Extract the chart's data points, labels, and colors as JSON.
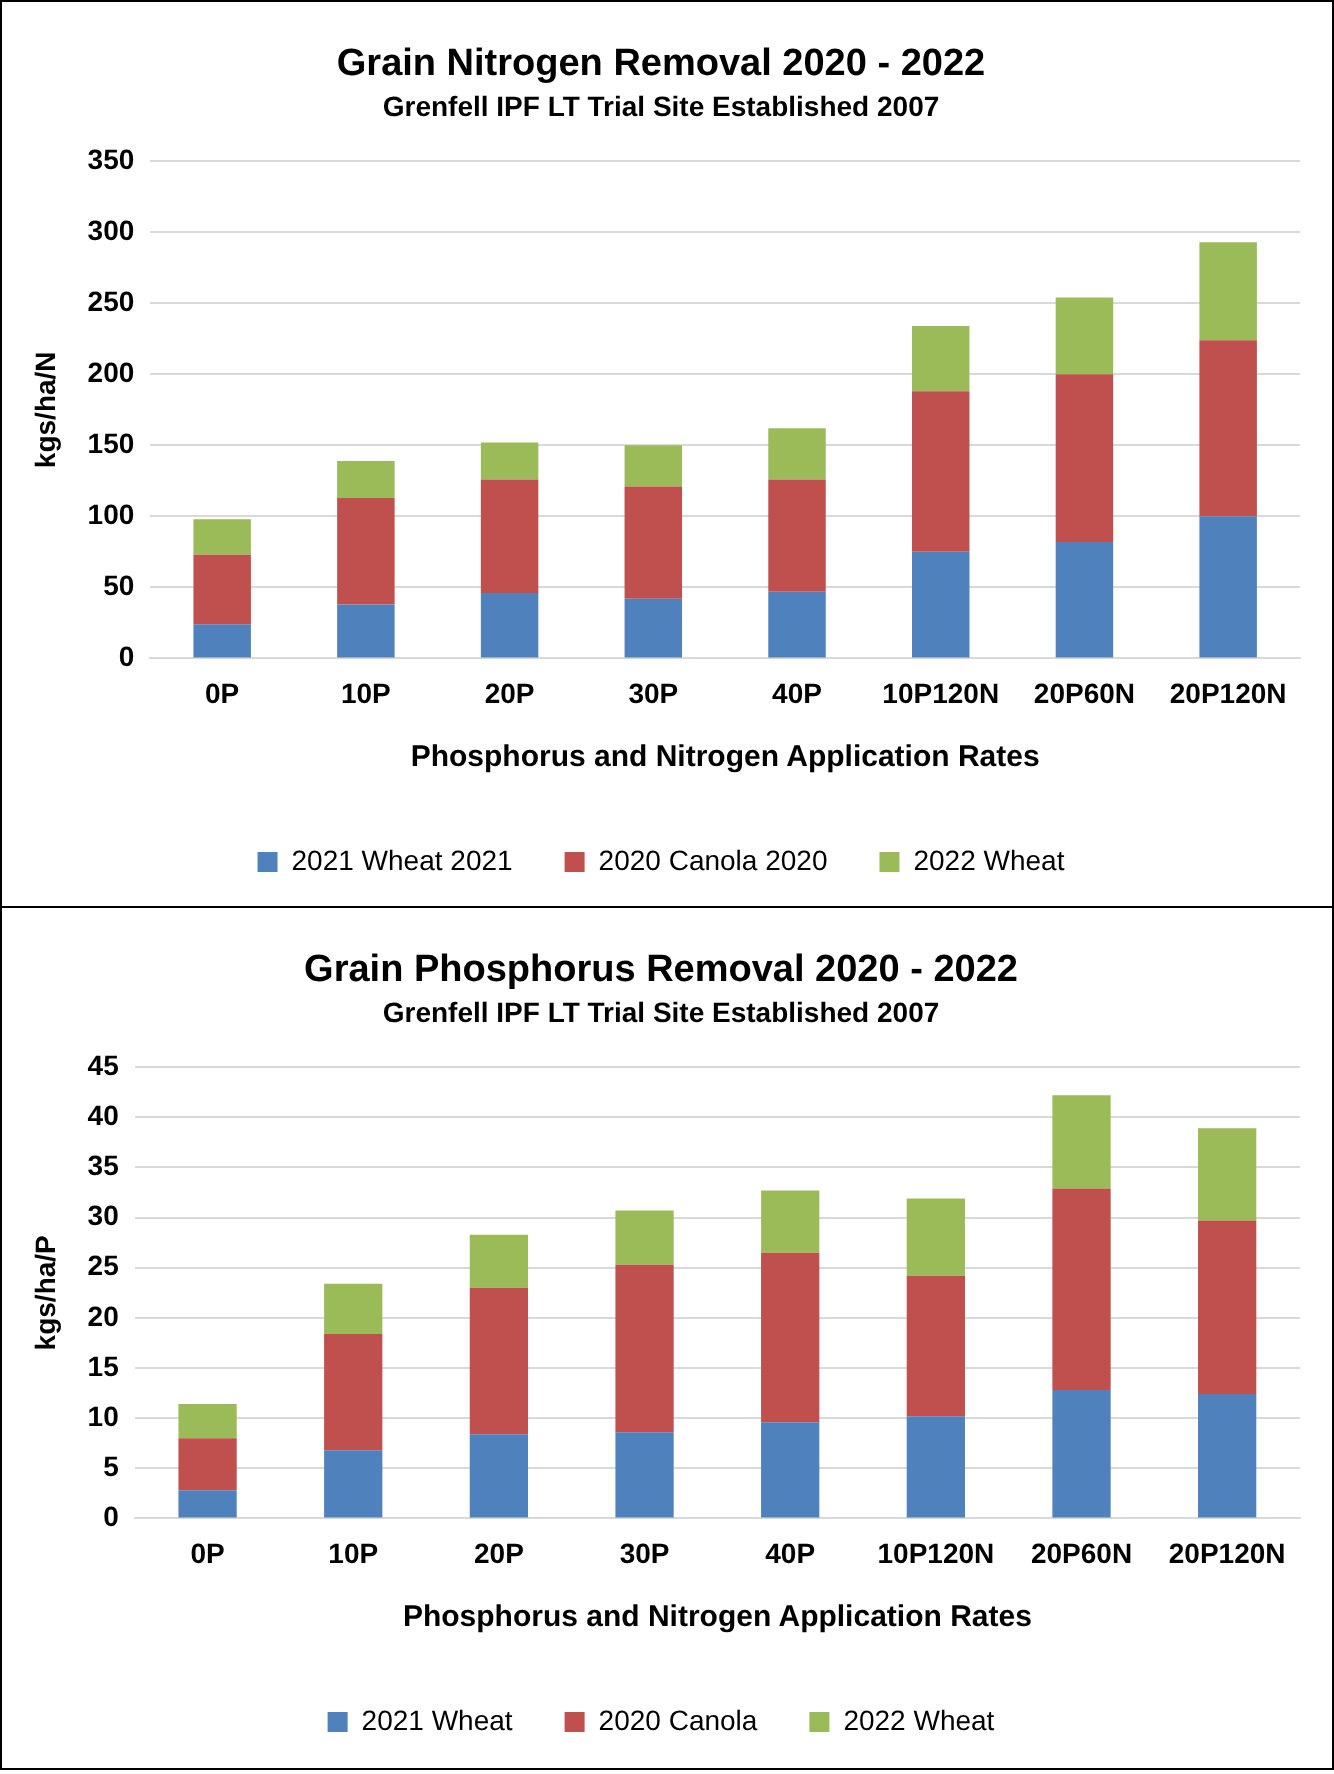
{
  "chart_data": [
    {
      "type": "bar",
      "title": "Grain Nitrogen Removal 2020 - 2022",
      "subtitle": "Grenfell IPF LT Trial Site Established 2007",
      "xlabel": "Phosphorus and Nitrogen Application Rates",
      "ylabel": "kgs/ha/N",
      "categories": [
        "0P",
        "10P",
        "20P",
        "30P",
        "40P",
        "10P120N",
        "20P60N",
        "20P120N"
      ],
      "stacked": true,
      "ylim": [
        0,
        350
      ],
      "yticks": [
        0,
        50,
        100,
        150,
        200,
        250,
        300,
        350
      ],
      "grid": "y",
      "legend": "bottom",
      "series": [
        {
          "name": "2021 Wheat 2021",
          "color": "#4f81bd",
          "values": [
            24,
            38,
            46,
            42,
            47,
            75,
            82,
            100
          ]
        },
        {
          "name": "2020 Canola 2020",
          "color": "#c0504d",
          "values": [
            49,
            75,
            80,
            79,
            79,
            113,
            118,
            124
          ]
        },
        {
          "name": "2022 Wheat",
          "color": "#9bbb59",
          "values": [
            25,
            26,
            26,
            29,
            36,
            46,
            54,
            69
          ]
        }
      ]
    },
    {
      "type": "bar",
      "title": "Grain Phosphorus Removal 2020 - 2022",
      "subtitle": "Grenfell IPF LT Trial Site Established 2007",
      "xlabel": "Phosphorus and Nitrogen Application Rates",
      "ylabel": "kgs/ha/P",
      "categories": [
        "0P",
        "10P",
        "20P",
        "30P",
        "40P",
        "10P120N",
        "20P60N",
        "20P120N"
      ],
      "stacked": true,
      "ylim": [
        0,
        45
      ],
      "yticks": [
        0,
        5,
        10,
        15,
        20,
        25,
        30,
        35,
        40,
        45
      ],
      "grid": "y",
      "legend": "bottom",
      "series": [
        {
          "name": "2021 Wheat",
          "color": "#4f81bd",
          "values": [
            2.8,
            6.8,
            8.4,
            8.6,
            9.6,
            10.2,
            12.8,
            12.4
          ]
        },
        {
          "name": "2020 Canola",
          "color": "#c0504d",
          "values": [
            5.2,
            11.6,
            14.6,
            16.7,
            16.9,
            14.0,
            20.1,
            17.3
          ]
        },
        {
          "name": "2022 Wheat",
          "color": "#9bbb59",
          "values": [
            3.4,
            5.0,
            5.3,
            5.4,
            6.2,
            7.7,
            9.3,
            9.2
          ]
        }
      ]
    }
  ]
}
